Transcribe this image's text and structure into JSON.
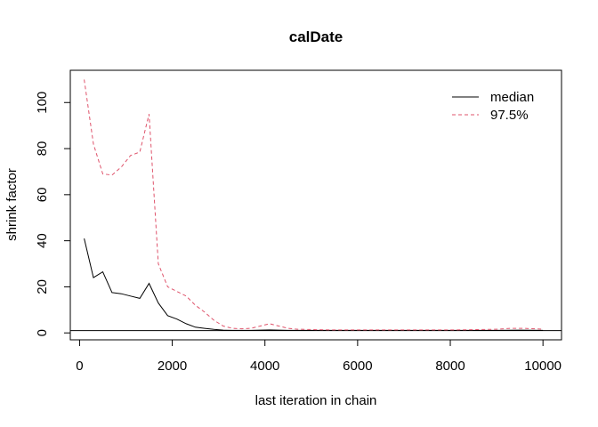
{
  "chart_data": {
    "type": "line",
    "title": "calDate",
    "xlabel": "last iteration in chain",
    "ylabel": "shrink factor",
    "xlim": [
      -200,
      10400
    ],
    "ylim": [
      -3,
      114
    ],
    "x_ticks": [
      0,
      2000,
      4000,
      6000,
      8000,
      10000
    ],
    "y_ticks": [
      0,
      20,
      40,
      60,
      80,
      100
    ],
    "reference_line": 1,
    "grid": false,
    "legend_position": "top-right",
    "series": [
      {
        "name": "median",
        "color": "#000000",
        "dash": "solid",
        "x": [
          100,
          300,
          500,
          700,
          900,
          1100,
          1300,
          1500,
          1700,
          1900,
          2100,
          2300,
          2500,
          2700,
          2900,
          3100,
          3300,
          3500,
          3700,
          3900,
          4100,
          4300,
          4500,
          4700,
          4900,
          5100,
          5500,
          6000,
          6500,
          7000,
          7500,
          8000,
          8500,
          9000,
          9500,
          10000
        ],
        "values": [
          41,
          24,
          26.5,
          17.5,
          17,
          16,
          15,
          21.5,
          13,
          7.5,
          6,
          4,
          2.5,
          2,
          1.5,
          1.2,
          1.1,
          1.1,
          1.1,
          1.2,
          1.3,
          1.2,
          1.1,
          1.1,
          1.1,
          1.1,
          1.1,
          1.1,
          1.1,
          1.1,
          1.1,
          1.1,
          1.1,
          1.1,
          1.2,
          1.1
        ]
      },
      {
        "name": "97.5%",
        "color": "#DF536B",
        "dash": "dashed",
        "x": [
          100,
          300,
          500,
          700,
          900,
          1100,
          1300,
          1500,
          1700,
          1900,
          2100,
          2300,
          2500,
          2700,
          2900,
          3100,
          3300,
          3500,
          3700,
          3900,
          4100,
          4300,
          4500,
          4700,
          4900,
          5100,
          5500,
          6000,
          6500,
          7000,
          7500,
          8000,
          8500,
          9000,
          9300,
          9600,
          10000
        ],
        "values": [
          110,
          82,
          69,
          68.5,
          72,
          77,
          78.5,
          95,
          30,
          20,
          18,
          16,
          12,
          9,
          5.5,
          3,
          2,
          1.8,
          2,
          3,
          4,
          3,
          2,
          1.6,
          1.5,
          1.4,
          1.3,
          1.3,
          1.3,
          1.3,
          1.3,
          1.3,
          1.4,
          1.6,
          2,
          2,
          1.6
        ]
      }
    ]
  }
}
